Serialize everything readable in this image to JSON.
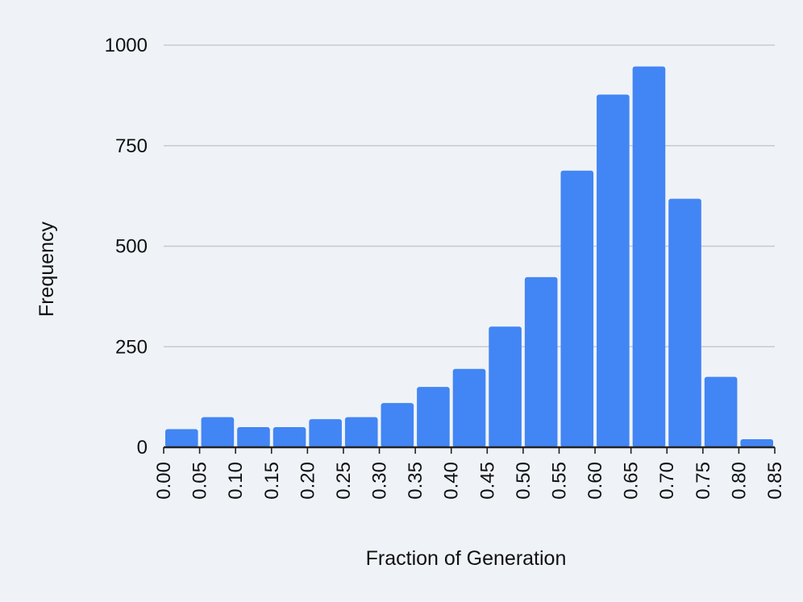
{
  "chart_data": {
    "type": "bar",
    "title": "",
    "xlabel": "Fraction of Generation",
    "ylabel": "Frequency",
    "x_ticks": [
      "0.00",
      "0.05",
      "0.10",
      "0.15",
      "0.20",
      "0.25",
      "0.30",
      "0.35",
      "0.40",
      "0.45",
      "0.50",
      "0.55",
      "0.60",
      "0.65",
      "0.70",
      "0.75",
      "0.80",
      "0.85"
    ],
    "bins": [
      {
        "start": 0.0,
        "end": 0.05,
        "value": 45
      },
      {
        "start": 0.05,
        "end": 0.1,
        "value": 75
      },
      {
        "start": 0.1,
        "end": 0.15,
        "value": 50
      },
      {
        "start": 0.15,
        "end": 0.2,
        "value": 50
      },
      {
        "start": 0.2,
        "end": 0.25,
        "value": 70
      },
      {
        "start": 0.25,
        "end": 0.3,
        "value": 75
      },
      {
        "start": 0.3,
        "end": 0.35,
        "value": 110
      },
      {
        "start": 0.35,
        "end": 0.4,
        "value": 150
      },
      {
        "start": 0.4,
        "end": 0.45,
        "value": 195
      },
      {
        "start": 0.45,
        "end": 0.5,
        "value": 300
      },
      {
        "start": 0.5,
        "end": 0.55,
        "value": 423
      },
      {
        "start": 0.55,
        "end": 0.6,
        "value": 688
      },
      {
        "start": 0.6,
        "end": 0.65,
        "value": 877
      },
      {
        "start": 0.65,
        "end": 0.7,
        "value": 947
      },
      {
        "start": 0.7,
        "end": 0.75,
        "value": 618
      },
      {
        "start": 0.75,
        "end": 0.8,
        "value": 175
      },
      {
        "start": 0.8,
        "end": 0.85,
        "value": 20
      }
    ],
    "y_ticks": [
      "0",
      "250",
      "500",
      "750",
      "1000"
    ],
    "ylim": [
      0,
      1000
    ],
    "xlim": [
      0.0,
      0.85
    ],
    "grid": true,
    "legend": "none",
    "bar_color": "#4285f4",
    "grid_color": "#c7cad1",
    "background_color": "#eff3f8"
  }
}
